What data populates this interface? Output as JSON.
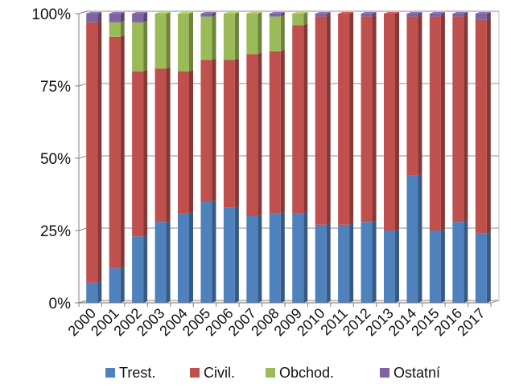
{
  "chart_data": {
    "type": "bar",
    "stacked": true,
    "percent_stacked": true,
    "categories": [
      "2000",
      "2001",
      "2002",
      "2003",
      "2004",
      "2005",
      "2006",
      "2007",
      "2008",
      "2009",
      "2010",
      "2011",
      "2012",
      "2013",
      "2014",
      "2015",
      "2016",
      "2017"
    ],
    "series": [
      {
        "name": "Trest.",
        "color": "#4F81BD",
        "values": [
          7,
          12,
          23,
          28,
          31,
          35,
          33,
          30,
          31,
          31,
          27,
          27,
          28,
          25,
          44,
          25,
          28,
          24
        ]
      },
      {
        "name": "Civil.",
        "color": "#C0504D",
        "values": [
          90,
          80,
          57,
          53,
          49,
          49,
          51,
          56,
          56,
          65,
          72,
          73,
          71,
          75,
          55,
          74,
          71,
          74
        ]
      },
      {
        "name": "Obchod.",
        "color": "#9BBB59",
        "values": [
          0,
          5,
          17,
          19,
          20,
          15,
          16,
          14,
          12,
          4,
          0,
          0,
          0,
          0,
          0,
          0,
          0,
          0
        ]
      },
      {
        "name": "Ostatní",
        "color": "#8064A2",
        "values": [
          3,
          3,
          3,
          0,
          0,
          1,
          0,
          0,
          1,
          0,
          1,
          0,
          1,
          0,
          1,
          1,
          1,
          2
        ]
      }
    ],
    "ylim": [
      0,
      100
    ],
    "yticks": [
      "0%",
      "25%",
      "50%",
      "75%",
      "100%"
    ],
    "ytick_values": [
      0,
      25,
      50,
      75,
      100
    ],
    "grid": true,
    "legend": "bottom",
    "title": "",
    "xlabel": "",
    "ylabel": ""
  }
}
